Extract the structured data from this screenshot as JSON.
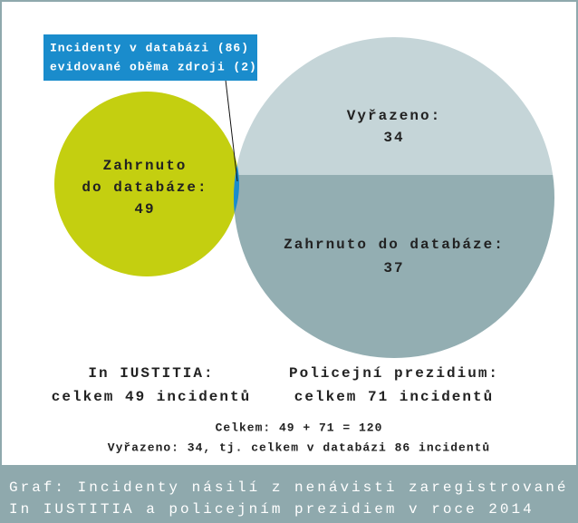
{
  "callout": {
    "lines": [
      "Incidenty v databázi (86)",
      "evidované oběma zdroji (2)"
    ]
  },
  "left_circle": {
    "lines": [
      "Zahrnuto",
      "do databáze:",
      "49"
    ]
  },
  "right_circle": {
    "top": [
      "Vyřazeno:",
      "34"
    ],
    "bottom": [
      "Zahrnuto do databáze:",
      "37"
    ]
  },
  "sources": {
    "left": [
      "In IUSTITIA:",
      "celkem 49 incidentů"
    ],
    "right": [
      "Policejní prezidium:",
      "celkem 71 incidentů"
    ]
  },
  "totals": [
    "Celkem: 49 + 71 = 120",
    "Vyřazeno: 34, tj. celkem v databázi 86 incidentů"
  ],
  "caption": [
    "Graf: Incidenty násilí z nenávisti zaregistrované",
    "In IUSTITIA a policejním prezidiem v roce 2014"
  ]
}
